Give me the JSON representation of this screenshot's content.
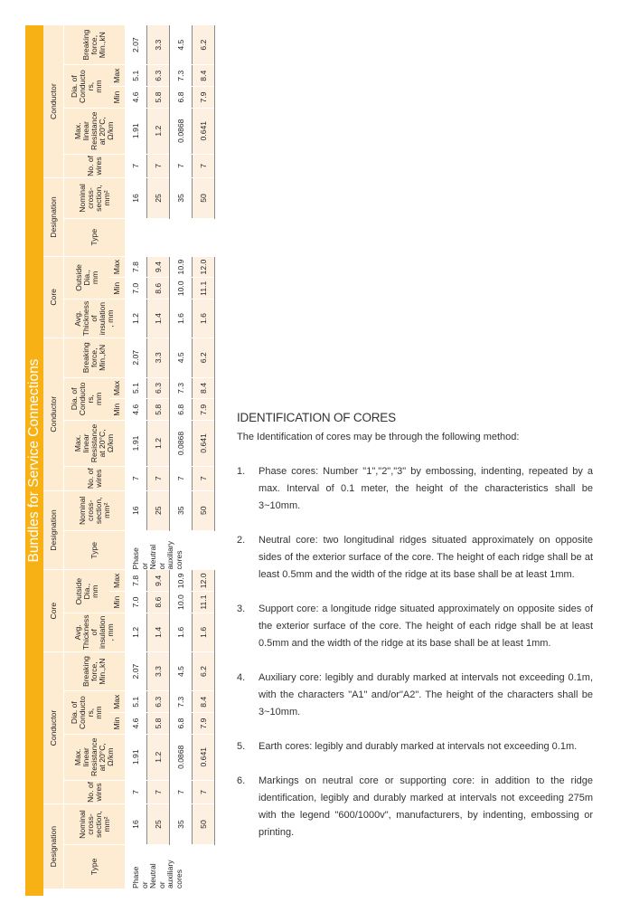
{
  "table": {
    "title": "Bundles for Service Connections",
    "colors": {
      "band": "#f8b114",
      "header_bg": "#fdebd2"
    },
    "groups": {
      "designation": "Designation",
      "conductor": "Conductor",
      "core": "Core"
    },
    "subheaders": {
      "type": "Type",
      "nominal": "Nominal\ncross-\nsection,\nmm²",
      "wires": "No. of\nwires",
      "resistance": "Max.\nlinear\nResistance\nat 20°C,\nΩ/km",
      "dia_conductor": "Dia. of\nConducto\nrs,\nmm",
      "breaking": "Breaking\nforce,\nMin.,kN",
      "thickness": "Avg.\nThickness\nof\ninsulation\n, mm",
      "outside_dia": "Outside\nDia.,\nmm",
      "min": "Min",
      "max": "Max"
    },
    "sets": [
      {
        "type_value": "Phase\nor\nNeutral\nor\nauxiliary\ncores",
        "has_core": true,
        "rows": [
          [
            "16",
            "7",
            "1.91",
            "4.6",
            "5.1",
            "2.07",
            "1.2",
            "7.0",
            "7.8"
          ],
          [
            "25",
            "7",
            "1.2",
            "5.8",
            "6.3",
            "3.3",
            "1.4",
            "8.6",
            "9.4"
          ],
          [
            "35",
            "7",
            "0.0868",
            "6.8",
            "7.3",
            "4.5",
            "1.6",
            "10.0",
            "10.9"
          ],
          [
            "50",
            "7",
            "0.641",
            "7.9",
            "8.4",
            "6.2",
            "1.6",
            "11.1",
            "12.0"
          ]
        ]
      },
      {
        "type_value": "Phase\nor\nNeutral\nor\nauxiliary\ncores",
        "has_core": true,
        "rows": [
          [
            "16",
            "7",
            "1.91",
            "4.6",
            "5.1",
            "2.07",
            "1.2",
            "7.0",
            "7.8"
          ],
          [
            "25",
            "7",
            "1.2",
            "5.8",
            "6.3",
            "3.3",
            "1.4",
            "8.6",
            "9.4"
          ],
          [
            "35",
            "7",
            "0.0868",
            "6.8",
            "7.3",
            "4.5",
            "1.6",
            "10.0",
            "10.9"
          ],
          [
            "50",
            "7",
            "0.641",
            "7.9",
            "8.4",
            "6.2",
            "1.6",
            "11.1",
            "12.0"
          ]
        ]
      },
      {
        "type_value": "",
        "has_core": false,
        "rows": [
          [
            "16",
            "7",
            "1.91",
            "4.6",
            "5.1",
            "2.07"
          ],
          [
            "25",
            "7",
            "1.2",
            "5.8",
            "6.3",
            "3.3"
          ],
          [
            "35",
            "7",
            "0.0868",
            "6.8",
            "7.3",
            "4.5"
          ],
          [
            "50",
            "7",
            "0.641",
            "7.9",
            "8.4",
            "6.2"
          ]
        ]
      }
    ]
  },
  "identification": {
    "heading": "IDENTIFICATION OF CORES",
    "intro": "The Identification of cores may be through the following method:",
    "items": [
      {
        "num": "1.",
        "text": "Phase cores: Number \"1\",\"2\",\"3\" by embossing, indenting, repeated by a max. Interval of 0.1 meter, the height of the characteristics shall be 3~10mm."
      },
      {
        "num": "2.",
        "text": "Neutral core: two longitudinal ridges situated approximately on opposite sides of the exterior surface of the core. The height of each ridge shall be at least 0.5mm and the width of the ridge at its base shall be at least 1mm."
      },
      {
        "num": "3.",
        "text": "Support core: a longitude ridge situated approximately on opposite sides of the exterior surface of the core. The height of each ridge shall be at least 0.5mm and the width of the ridge at its base shall be at least 1mm."
      },
      {
        "num": "4.",
        "text": "Auxiliary core: legibly and durably marked at intervals not exceeding 0.1m, with the characters \"A1\" and/or\"A2\". The height of the characters shall be 3~10mm."
      },
      {
        "num": "5.",
        "text": "Earth cores: legibly and durably marked at intervals not exceeding 0.1m."
      },
      {
        "num": "6.",
        "text": "Markings on neutral core or supporting core: in addition to the ridge identification, legibly and durably marked at intervals not exceeding 275m with the legend \"600/1000v\", manufacturers, by indenting, embossing or printing."
      }
    ]
  }
}
